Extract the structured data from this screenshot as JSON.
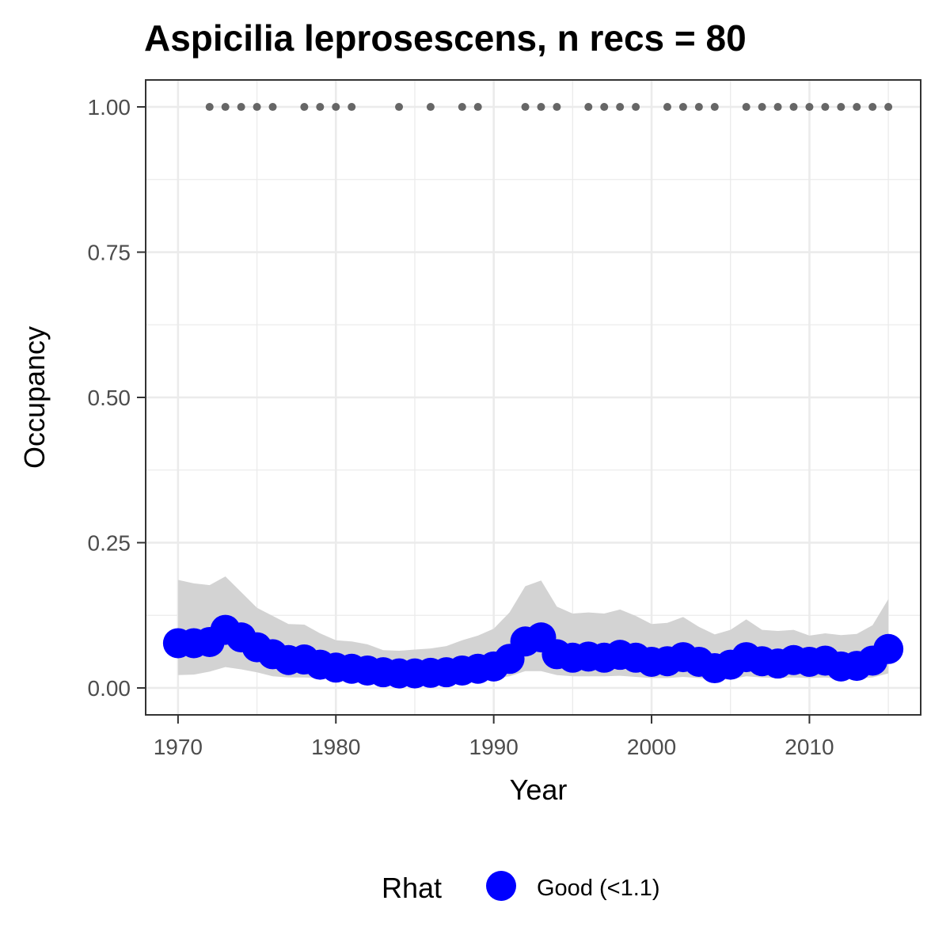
{
  "chart_data": {
    "type": "line",
    "title": "Aspicilia leprosescens, n recs = 80",
    "xlabel": "Year",
    "ylabel": "Occupancy",
    "xlim": [
      1968,
      2017
    ],
    "ylim": [
      -0.045,
      1.045
    ],
    "x_ticks": [
      1970,
      1980,
      1990,
      2000,
      2010
    ],
    "x_tick_labels": [
      "1970",
      "1980",
      "1990",
      "2000",
      "2010"
    ],
    "y_ticks": [
      0,
      0.25,
      0.5,
      0.75,
      1.0
    ],
    "y_tick_labels": [
      "0.00",
      "0.25",
      "0.50",
      "0.75",
      "1.00"
    ],
    "grid": true,
    "legend": {
      "title": "Rhat",
      "position": "bottom",
      "entries": [
        {
          "label": "Good (<1.1)",
          "color": "#0000ff"
        }
      ]
    },
    "colors": {
      "points": "#0000ff",
      "band": "#d3d3d3",
      "records": "#666666",
      "grid": "#ebebeb",
      "panel_border": "#333333"
    },
    "series": [
      {
        "name": "Good (<1.1)",
        "x": [
          1970,
          1971,
          1972,
          1973,
          1974,
          1975,
          1976,
          1977,
          1978,
          1979,
          1980,
          1981,
          1982,
          1983,
          1984,
          1985,
          1986,
          1987,
          1988,
          1989,
          1990,
          1991,
          1992,
          1993,
          1994,
          1995,
          1996,
          1997,
          1998,
          1999,
          2000,
          2001,
          2002,
          2003,
          2004,
          2005,
          2006,
          2007,
          2008,
          2009,
          2010,
          2011,
          2012,
          2013,
          2014,
          2015
        ],
        "y": [
          0.077,
          0.077,
          0.079,
          0.1,
          0.087,
          0.07,
          0.058,
          0.048,
          0.049,
          0.04,
          0.035,
          0.033,
          0.03,
          0.027,
          0.025,
          0.025,
          0.026,
          0.027,
          0.03,
          0.033,
          0.037,
          0.05,
          0.08,
          0.087,
          0.058,
          0.052,
          0.054,
          0.052,
          0.057,
          0.052,
          0.045,
          0.046,
          0.053,
          0.045,
          0.034,
          0.04,
          0.053,
          0.046,
          0.042,
          0.048,
          0.045,
          0.047,
          0.037,
          0.038,
          0.047,
          0.067
        ],
        "lower": [
          0.022,
          0.023,
          0.028,
          0.036,
          0.032,
          0.027,
          0.02,
          0.018,
          0.018,
          0.017,
          0.016,
          0.015,
          0.014,
          0.012,
          0.011,
          0.011,
          0.012,
          0.012,
          0.013,
          0.014,
          0.016,
          0.02,
          0.029,
          0.029,
          0.022,
          0.02,
          0.02,
          0.02,
          0.021,
          0.019,
          0.017,
          0.017,
          0.019,
          0.017,
          0.014,
          0.015,
          0.02,
          0.018,
          0.017,
          0.018,
          0.017,
          0.018,
          0.015,
          0.016,
          0.018,
          0.025
        ],
        "upper": [
          0.186,
          0.18,
          0.177,
          0.192,
          0.165,
          0.138,
          0.124,
          0.11,
          0.109,
          0.094,
          0.082,
          0.08,
          0.075,
          0.065,
          0.064,
          0.066,
          0.068,
          0.072,
          0.082,
          0.09,
          0.102,
          0.13,
          0.175,
          0.185,
          0.14,
          0.128,
          0.13,
          0.128,
          0.135,
          0.124,
          0.11,
          0.112,
          0.122,
          0.105,
          0.092,
          0.1,
          0.118,
          0.1,
          0.098,
          0.1,
          0.09,
          0.094,
          0.091,
          0.093,
          0.108,
          0.153
        ]
      }
    ],
    "record_years": [
      1972,
      1973,
      1974,
      1975,
      1976,
      1978,
      1979,
      1980,
      1981,
      1984,
      1986,
      1988,
      1989,
      1992,
      1993,
      1994,
      1996,
      1997,
      1998,
      1999,
      2001,
      2002,
      2003,
      2004,
      2006,
      2007,
      2008,
      2009,
      2010,
      2011,
      2012,
      2013,
      2014,
      2015
    ],
    "record_value": 1.0
  }
}
